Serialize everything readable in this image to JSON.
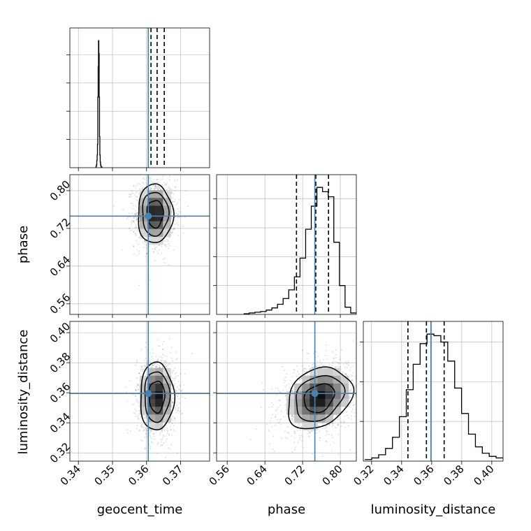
{
  "chart_data": {
    "type": "corner",
    "parameters": [
      "geocent_time",
      "phase",
      "luminosity_distance"
    ],
    "colors": {
      "truth": "#4682b4",
      "hist": "#000000",
      "grid": "#b0b0b0"
    },
    "grid": true,
    "ranges": {
      "geocent_time": [
        0.3375,
        0.3785
      ],
      "phase": [
        0.5375,
        0.834
      ],
      "luminosity_distance": [
        0.3145,
        0.4075
      ]
    },
    "ticks": {
      "geocent_time": [
        {
          "v": 0.34,
          "label": "0.34"
        },
        {
          "v": 0.35,
          "label": "0.35"
        },
        {
          "v": 0.36,
          "label": "0.36"
        },
        {
          "v": 0.37,
          "label": "0.37"
        }
      ],
      "phase": [
        {
          "v": 0.56,
          "label": "0.56"
        },
        {
          "v": 0.64,
          "label": "0.64"
        },
        {
          "v": 0.72,
          "label": "0.72"
        },
        {
          "v": 0.8,
          "label": "0.80"
        }
      ],
      "luminosity_distance": [
        {
          "v": 0.32,
          "label": "0.32"
        },
        {
          "v": 0.34,
          "label": "0.34"
        },
        {
          "v": 0.36,
          "label": "0.36"
        },
        {
          "v": 0.38,
          "label": "0.38"
        },
        {
          "v": 0.4,
          "label": "0.40"
        }
      ]
    },
    "truths": {
      "geocent_time": 0.3605,
      "phase": 0.746,
      "luminosity_distance": 0.3595
    },
    "quantiles": {
      "geocent_time": [
        0.3613,
        0.3631,
        0.3652
      ],
      "phase": [
        0.707,
        0.748,
        0.775
      ],
      "luminosity_distance": [
        0.3442,
        0.3565,
        0.3683
      ]
    },
    "histograms": {
      "geocent_time": {
        "bins": [
          0.345,
          0.347
        ],
        "counts": [
          1,
          1,
          2,
          4,
          10,
          18,
          33,
          100,
          143,
          180,
          162,
          100,
          44,
          18,
          8,
          4,
          2,
          1,
          1,
          0
        ]
      },
      "phase": {
        "bins": [
          0.595,
          0.834
        ],
        "counts": [
          1,
          2,
          3,
          4,
          6,
          9,
          14,
          22,
          34,
          52,
          78,
          118,
          150,
          176,
          170,
          163,
          100,
          40,
          10,
          2
        ]
      },
      "luminosity_distance": {
        "bins": [
          0.3155,
          0.4075
        ],
        "counts": [
          2,
          4,
          8,
          16,
          30,
          56,
          90,
          122,
          148,
          160,
          158,
          150,
          126,
          92,
          60,
          34,
          18,
          10,
          6,
          4
        ]
      }
    },
    "posterior_2d": {
      "geocent_time_vs_phase": {
        "center": [
          0.3625,
          0.751
        ],
        "sd": [
          0.0024,
          0.029
        ],
        "corr": 0.0
      },
      "geocent_time_vs_luminosity_distance": {
        "center": [
          0.363,
          0.3575
        ],
        "sd": [
          0.0023,
          0.0105
        ],
        "corr": 0.0
      },
      "phase_vs_luminosity_distance": {
        "center": [
          0.755,
          0.3565
        ],
        "sd": [
          0.032,
          0.0095
        ],
        "corr": 0.25
      }
    }
  }
}
